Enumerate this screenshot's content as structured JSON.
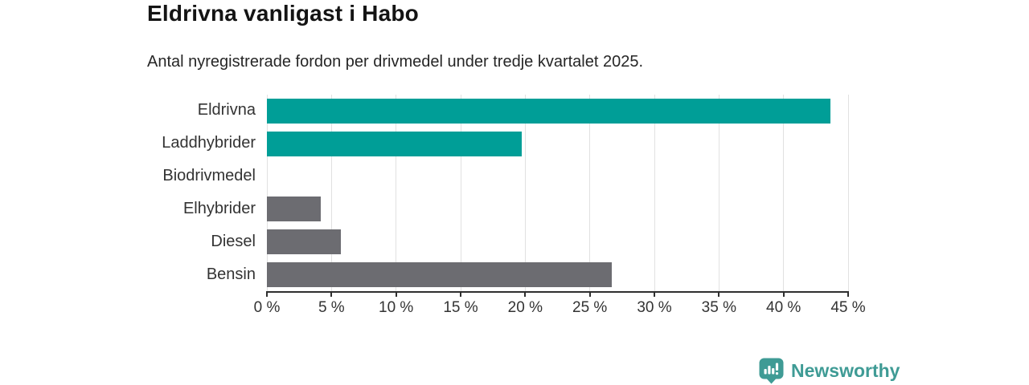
{
  "header": {
    "title": "Eldrivna vanligast i Habo",
    "subtitle": "Antal nyregistrerade fordon per drivmedel under tredje kvartalet 2025."
  },
  "chart_data": {
    "type": "bar",
    "orientation": "horizontal",
    "title": "Eldrivna vanligast i Habo",
    "subtitle": "Antal nyregistrerade fordon per drivmedel under tredje kvartalet 2025.",
    "categories": [
      "Eldrivna",
      "Laddhybrider",
      "Biodrivmedel",
      "Elhybrider",
      "Diesel",
      "Bensin"
    ],
    "values": [
      43.6,
      19.7,
      0,
      4.2,
      5.7,
      26.7
    ],
    "unit": "%",
    "bar_colors": [
      "#009e97",
      "#009e97",
      "#6c6c71",
      "#6c6c71",
      "#6c6c71",
      "#6c6c71"
    ],
    "xlim": [
      0,
      45
    ],
    "x_ticks": [
      0,
      5,
      10,
      15,
      20,
      25,
      30,
      35,
      40,
      45
    ],
    "x_tick_labels": [
      "0 %",
      "5 %",
      "10 %",
      "15 %",
      "20 %",
      "25 %",
      "30 %",
      "35 %",
      "40 %",
      "45 %"
    ],
    "grid": true,
    "legend": "none",
    "accent_color": "#009e97",
    "neutral_color": "#6c6c71",
    "gridline_color": "#e1e1e1",
    "axis_color": "#2f2f2f"
  },
  "branding": {
    "logo_text": "Newsworthy",
    "logo_color": "#3f9b95"
  }
}
